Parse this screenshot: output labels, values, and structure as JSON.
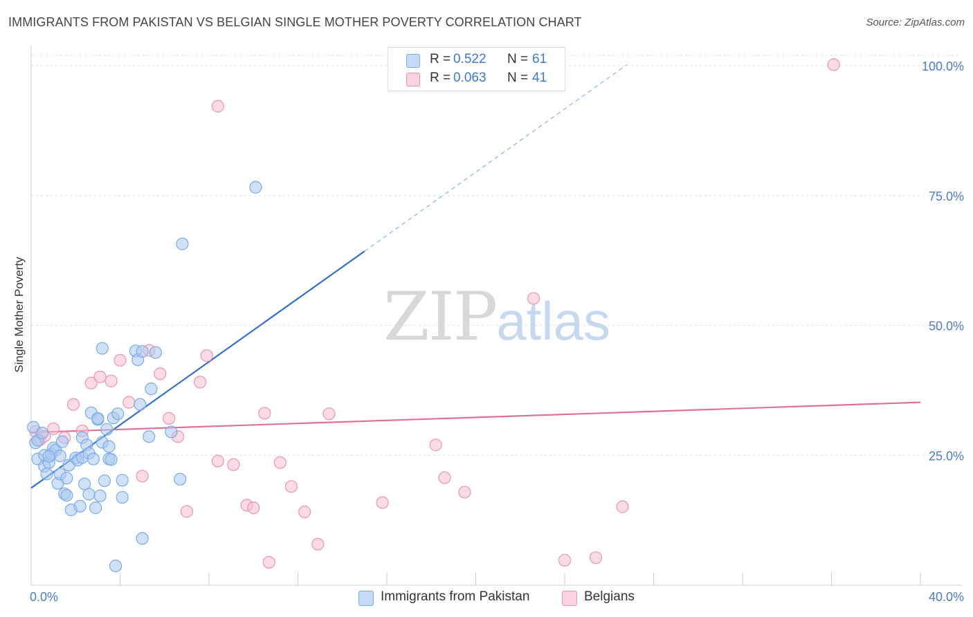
{
  "header": {
    "title": "IMMIGRANTS FROM PAKISTAN VS BELGIAN SINGLE MOTHER POVERTY CORRELATION CHART",
    "source": "Source: ZipAtlas.com"
  },
  "watermark": {
    "zip": "ZIP",
    "atlas": "atlas"
  },
  "legend": {
    "rows": [
      {
        "r_label": "R =",
        "r_value": "0.522",
        "n_label": "N =",
        "n_value": "61",
        "color": "#a9c8f0"
      },
      {
        "r_label": "R =",
        "r_value": "0.063",
        "n_label": "N =",
        "n_value": "41",
        "color": "#f7bfd0"
      }
    ]
  },
  "bottom_legend": [
    {
      "label": "Immigrants from Pakistan",
      "color": "#a9c8f0"
    },
    {
      "label": "Belgians",
      "color": "#f7bfd0"
    }
  ],
  "colors": {
    "blue_fill": "#a9c8f0",
    "blue_stroke": "#7aaae6",
    "blue_line": "#2f6fd0",
    "pink_fill": "#f7bfd0",
    "pink_stroke": "#eb93b0",
    "pink_line": "#e0709a",
    "tick_text": "#4a7cc9",
    "grid": "#dddddd"
  },
  "chart_data": {
    "type": "scatter",
    "title": "IMMIGRANTS FROM PAKISTAN VS BELGIAN SINGLE MOTHER POVERTY CORRELATION CHART",
    "xlabel": "",
    "ylabel": "Single Mother Poverty",
    "xlim": [
      0,
      40
    ],
    "ylim": [
      0,
      102
    ],
    "x_tick_labels": [
      "0.0%",
      "40.0%"
    ],
    "y_ticks": [
      25,
      50,
      75,
      100
    ],
    "y_tick_labels": [
      "25.0%",
      "50.0%",
      "75.0%",
      "100.0%"
    ],
    "grid": true,
    "series": [
      {
        "name": "Immigrants from Pakistan",
        "r": 0.522,
        "n": 61,
        "points": [
          [
            0.1,
            30.4
          ],
          [
            0.2,
            27.4
          ],
          [
            0.3,
            27.9
          ],
          [
            0.3,
            24.3
          ],
          [
            0.5,
            29.3
          ],
          [
            0.6,
            25.0
          ],
          [
            0.6,
            22.9
          ],
          [
            0.7,
            21.4
          ],
          [
            0.8,
            23.6
          ],
          [
            0.9,
            25.2
          ],
          [
            1.0,
            26.4
          ],
          [
            1.1,
            26.0
          ],
          [
            1.2,
            19.6
          ],
          [
            1.3,
            21.4
          ],
          [
            1.3,
            24.9
          ],
          [
            1.5,
            17.6
          ],
          [
            1.6,
            17.3
          ],
          [
            1.6,
            20.6
          ],
          [
            1.7,
            23.1
          ],
          [
            1.8,
            14.5
          ],
          [
            2.0,
            24.5
          ],
          [
            2.1,
            24.1
          ],
          [
            2.2,
            15.2
          ],
          [
            2.3,
            24.6
          ],
          [
            2.3,
            28.4
          ],
          [
            2.4,
            19.5
          ],
          [
            2.5,
            27.0
          ],
          [
            2.6,
            25.4
          ],
          [
            2.6,
            17.5
          ],
          [
            2.7,
            33.2
          ],
          [
            2.8,
            24.3
          ],
          [
            2.9,
            14.9
          ],
          [
            3.0,
            31.9
          ],
          [
            3.0,
            32.1
          ],
          [
            3.1,
            17.2
          ],
          [
            3.2,
            27.5
          ],
          [
            3.2,
            45.6
          ],
          [
            3.3,
            20.1
          ],
          [
            3.4,
            30.0
          ],
          [
            3.5,
            26.7
          ],
          [
            3.5,
            24.3
          ],
          [
            3.6,
            24.2
          ],
          [
            3.7,
            32.2
          ],
          [
            3.8,
            3.7
          ],
          [
            3.9,
            33.0
          ],
          [
            4.1,
            20.2
          ],
          [
            4.1,
            16.9
          ],
          [
            4.7,
            45.1
          ],
          [
            4.8,
            43.4
          ],
          [
            4.9,
            34.8
          ],
          [
            5.0,
            45.0
          ],
          [
            5.0,
            9.0
          ],
          [
            5.3,
            28.6
          ],
          [
            5.4,
            37.8
          ],
          [
            5.6,
            44.8
          ],
          [
            6.3,
            29.5
          ],
          [
            6.7,
            20.4
          ],
          [
            6.8,
            65.7
          ],
          [
            10.1,
            76.6
          ],
          [
            0.8,
            24.8
          ],
          [
            1.4,
            27.6
          ]
        ]
      },
      {
        "name": "Belgians",
        "r": 0.063,
        "n": 41,
        "points": [
          [
            0.2,
            29.6
          ],
          [
            0.4,
            28.0
          ],
          [
            0.6,
            28.7
          ],
          [
            1.0,
            30.1
          ],
          [
            1.5,
            28.4
          ],
          [
            1.9,
            34.8
          ],
          [
            2.3,
            29.7
          ],
          [
            2.7,
            38.9
          ],
          [
            3.1,
            40.1
          ],
          [
            3.6,
            39.3
          ],
          [
            4.0,
            43.3
          ],
          [
            4.4,
            35.2
          ],
          [
            5.0,
            21.0
          ],
          [
            5.3,
            45.2
          ],
          [
            5.8,
            40.7
          ],
          [
            6.2,
            32.1
          ],
          [
            6.6,
            28.6
          ],
          [
            7.0,
            14.2
          ],
          [
            7.6,
            39.1
          ],
          [
            7.9,
            44.2
          ],
          [
            8.4,
            92.2
          ],
          [
            8.4,
            23.9
          ],
          [
            9.1,
            23.2
          ],
          [
            9.7,
            15.4
          ],
          [
            10.0,
            14.9
          ],
          [
            10.5,
            33.1
          ],
          [
            10.7,
            4.4
          ],
          [
            11.2,
            23.6
          ],
          [
            11.7,
            19.0
          ],
          [
            12.3,
            14.1
          ],
          [
            12.9,
            7.9
          ],
          [
            13.4,
            33.0
          ],
          [
            15.8,
            15.9
          ],
          [
            18.2,
            27.0
          ],
          [
            18.6,
            20.7
          ],
          [
            19.5,
            17.9
          ],
          [
            22.6,
            55.2
          ],
          [
            24.0,
            4.8
          ],
          [
            25.4,
            5.3
          ],
          [
            26.6,
            15.1
          ],
          [
            36.1,
            100.2
          ]
        ]
      }
    ],
    "trend_lines": [
      {
        "series": "Immigrants from Pakistan",
        "solid": [
          [
            0,
            18.7
          ],
          [
            15.0,
            64.3
          ]
        ],
        "dashed": [
          [
            15.0,
            64.3
          ],
          [
            26.8,
            100.2
          ]
        ]
      },
      {
        "series": "Belgians",
        "solid": [
          [
            0,
            29.4
          ],
          [
            40,
            35.2
          ]
        ]
      }
    ]
  }
}
